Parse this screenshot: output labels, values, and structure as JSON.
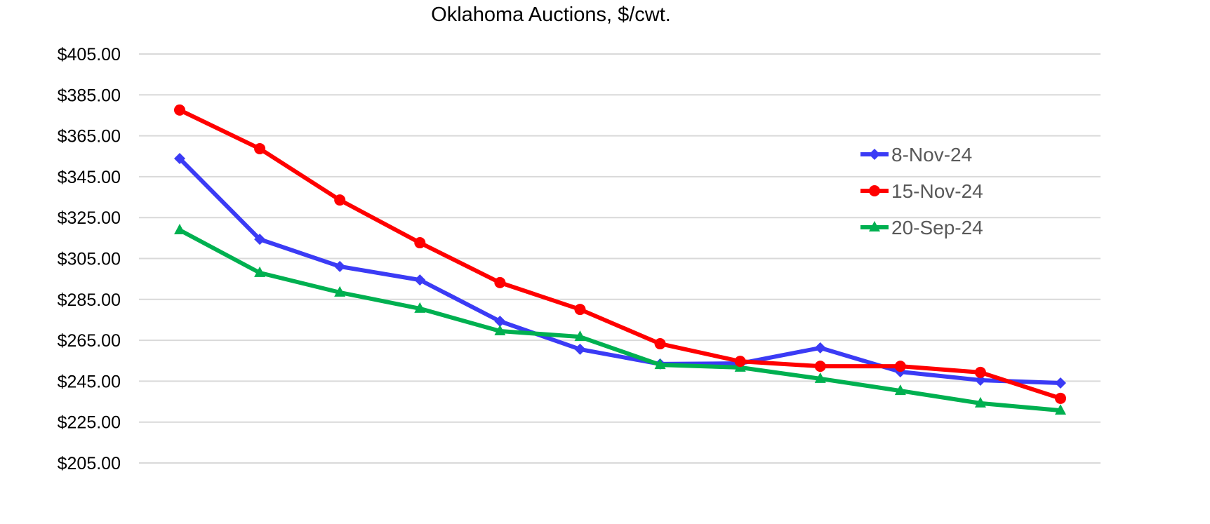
{
  "chart_data": {
    "type": "line",
    "title": "Oklahoma Auctions, $/cwt.",
    "xlabel": "",
    "ylabel": "",
    "ylim": [
      205,
      405
    ],
    "yticks": [
      "$205.00",
      "$225.00",
      "$245.00",
      "$265.00",
      "$285.00",
      "$305.00",
      "$325.00",
      "$345.00",
      "$365.00",
      "$385.00",
      "$405.00"
    ],
    "grid": "horizontal",
    "legend_position": "right",
    "series": [
      {
        "name": "8-Nov-24",
        "color": "#3b3bf5",
        "marker": "diamond",
        "values": [
          353.9,
          314.4,
          301.1,
          294.5,
          274.3,
          260.6,
          253.4,
          253.7,
          261.3,
          249.6,
          245.5,
          244.1
        ]
      },
      {
        "name": "15-Nov-24",
        "color": "#ff0000",
        "marker": "circle",
        "values": [
          377.6,
          358.7,
          333.6,
          312.7,
          293.2,
          280.1,
          263.3,
          254.7,
          252.3,
          252.3,
          249.3,
          236.6
        ]
      },
      {
        "name": "20-Sep-24",
        "color": "#00b050",
        "marker": "triangle",
        "values": [
          318.9,
          298.0,
          288.4,
          280.5,
          269.5,
          266.7,
          253.0,
          251.7,
          246.2,
          240.3,
          234.2,
          230.7
        ]
      }
    ]
  }
}
